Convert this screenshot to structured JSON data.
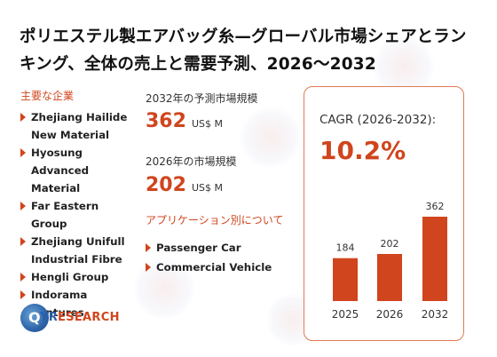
{
  "title": "ポリエステル製エアバッグ糸—グローバル市場シェアとランキング、全体の売上と需要予測、2026～2032",
  "companies_heading": "主要な企業",
  "companies": [
    "Zhejiang Hailide New Material",
    "Hyosung Advanced Material",
    "Far Eastern Group",
    "Zhejiang Unifull Industrial Fibre",
    "Hengli Group",
    "Indorama Ventures"
  ],
  "forecast_2032": {
    "label": "2032年の予測市場規模",
    "value": "362",
    "unit": "US$ M"
  },
  "market_2026": {
    "label": "2026年の市場規模",
    "value": "202",
    "unit": "US$ M"
  },
  "applications_heading": "アプリケーション別について",
  "applications": [
    "Passenger Car",
    "Commercial Vehicle"
  ],
  "cagr": {
    "label": "CAGR (2026-2032):",
    "value": "10.2%"
  },
  "logo": {
    "name": "QYRESEARCH",
    "part1": "Q",
    "part2": "YR",
    "part3": "ESEARCH"
  },
  "accent_color": "#d0451d",
  "chart_data": {
    "type": "bar",
    "categories": [
      "2025",
      "2026",
      "2032"
    ],
    "values": [
      184,
      202,
      362
    ],
    "ylim": [
      0,
      362
    ],
    "grid": false,
    "title": "",
    "xlabel": "",
    "ylabel": ""
  }
}
